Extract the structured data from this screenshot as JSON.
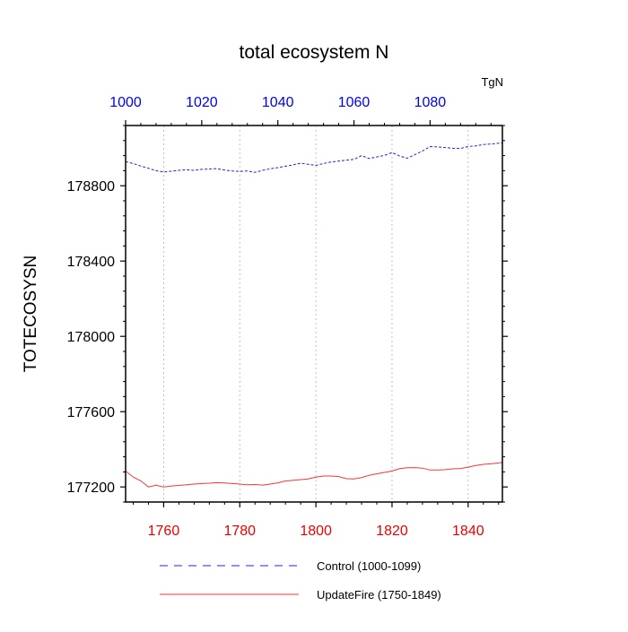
{
  "chart_data": {
    "type": "line",
    "title": "total ecosystem N",
    "units": "TgN",
    "ylabel": "TOTECOSYSN",
    "ylim": [
      177120,
      179120
    ],
    "y_ticks": [
      177200,
      177600,
      178000,
      178400,
      178800
    ],
    "grid": "vertical dashed at top/bottom axis ticks",
    "legend_position": "bottom",
    "top_axis": {
      "range": [
        1000,
        1099
      ],
      "ticks": [
        1000,
        1020,
        1040,
        1060,
        1080
      ],
      "color": "#0000ee"
    },
    "bottom_axis": {
      "range": [
        1750,
        1849
      ],
      "ticks": [
        1760,
        1780,
        1800,
        1820,
        1840
      ],
      "color": "#ee0000"
    },
    "series": [
      {
        "name": "Control (1000-1099)",
        "axis": "top",
        "color": "#2222dd",
        "style": "dashed",
        "x": [
          1000,
          1002,
          1004,
          1006,
          1008,
          1010,
          1012,
          1014,
          1016,
          1018,
          1020,
          1022,
          1024,
          1026,
          1028,
          1030,
          1032,
          1034,
          1036,
          1038,
          1040,
          1042,
          1044,
          1046,
          1048,
          1050,
          1052,
          1054,
          1056,
          1058,
          1060,
          1062,
          1064,
          1066,
          1068,
          1070,
          1072,
          1074,
          1076,
          1078,
          1080,
          1082,
          1084,
          1086,
          1088,
          1090,
          1092,
          1094,
          1096,
          1099
        ],
        "y": [
          178928,
          178918,
          178905,
          178893,
          178880,
          178873,
          178877,
          178882,
          178885,
          178882,
          178887,
          178889,
          178891,
          178884,
          178878,
          178876,
          178878,
          178871,
          178882,
          178890,
          178896,
          178904,
          178911,
          178920,
          178914,
          178908,
          178918,
          178926,
          178931,
          178936,
          178940,
          178960,
          178945,
          178953,
          178961,
          178976,
          178958,
          178946,
          178965,
          178985,
          179008,
          179006,
          179003,
          178999,
          178998,
          179008,
          179012,
          179019,
          179022,
          179027
        ]
      },
      {
        "name": "UpdateFire (1750-1849)",
        "axis": "bottom",
        "color": "#ff3333",
        "style": "solid",
        "x": [
          1750,
          1752,
          1754,
          1756,
          1758,
          1760,
          1762,
          1764,
          1766,
          1768,
          1770,
          1772,
          1774,
          1776,
          1778,
          1780,
          1782,
          1784,
          1786,
          1788,
          1790,
          1792,
          1794,
          1796,
          1798,
          1800,
          1802,
          1804,
          1806,
          1808,
          1810,
          1812,
          1814,
          1816,
          1818,
          1820,
          1822,
          1824,
          1826,
          1828,
          1830,
          1832,
          1834,
          1836,
          1838,
          1840,
          1842,
          1844,
          1846,
          1849
        ],
        "y": [
          177285,
          177253,
          177232,
          177200,
          177209,
          177200,
          177205,
          177208,
          177212,
          177215,
          177218,
          177220,
          177223,
          177221,
          177218,
          177215,
          177212,
          177213,
          177210,
          177215,
          177222,
          177232,
          177235,
          177239,
          177243,
          177252,
          177258,
          177258,
          177255,
          177244,
          177243,
          177250,
          177262,
          177270,
          177277,
          177285,
          177297,
          177302,
          177303,
          177300,
          177290,
          177290,
          177292,
          177296,
          177298,
          177305,
          177314,
          177320,
          177323,
          177330
        ]
      }
    ]
  }
}
